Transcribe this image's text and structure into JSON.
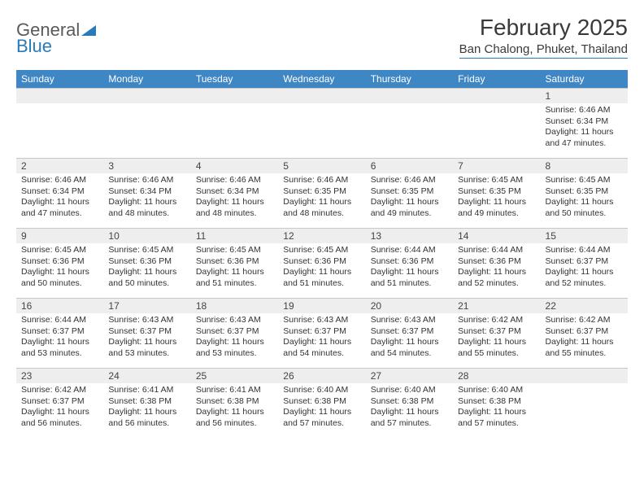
{
  "brand": {
    "word1": "General",
    "word2": "Blue"
  },
  "title": {
    "month": "February 2025",
    "location": "Ban Chalong, Phuket, Thailand"
  },
  "colors": {
    "header_bg": "#3f86c5",
    "header_text": "#ffffff",
    "daynum_bg": "#eeeeee",
    "border": "#c8c8c8",
    "accent": "#2a7ab9",
    "text": "#333333",
    "page_bg": "#ffffff"
  },
  "weekdays": [
    "Sunday",
    "Monday",
    "Tuesday",
    "Wednesday",
    "Thursday",
    "Friday",
    "Saturday"
  ],
  "weeks": [
    [
      {
        "n": "",
        "rise": "",
        "set": "",
        "day": ""
      },
      {
        "n": "",
        "rise": "",
        "set": "",
        "day": ""
      },
      {
        "n": "",
        "rise": "",
        "set": "",
        "day": ""
      },
      {
        "n": "",
        "rise": "",
        "set": "",
        "day": ""
      },
      {
        "n": "",
        "rise": "",
        "set": "",
        "day": ""
      },
      {
        "n": "",
        "rise": "",
        "set": "",
        "day": ""
      },
      {
        "n": "1",
        "rise": "Sunrise: 6:46 AM",
        "set": "Sunset: 6:34 PM",
        "day": "Daylight: 11 hours and 47 minutes."
      }
    ],
    [
      {
        "n": "2",
        "rise": "Sunrise: 6:46 AM",
        "set": "Sunset: 6:34 PM",
        "day": "Daylight: 11 hours and 47 minutes."
      },
      {
        "n": "3",
        "rise": "Sunrise: 6:46 AM",
        "set": "Sunset: 6:34 PM",
        "day": "Daylight: 11 hours and 48 minutes."
      },
      {
        "n": "4",
        "rise": "Sunrise: 6:46 AM",
        "set": "Sunset: 6:34 PM",
        "day": "Daylight: 11 hours and 48 minutes."
      },
      {
        "n": "5",
        "rise": "Sunrise: 6:46 AM",
        "set": "Sunset: 6:35 PM",
        "day": "Daylight: 11 hours and 48 minutes."
      },
      {
        "n": "6",
        "rise": "Sunrise: 6:46 AM",
        "set": "Sunset: 6:35 PM",
        "day": "Daylight: 11 hours and 49 minutes."
      },
      {
        "n": "7",
        "rise": "Sunrise: 6:45 AM",
        "set": "Sunset: 6:35 PM",
        "day": "Daylight: 11 hours and 49 minutes."
      },
      {
        "n": "8",
        "rise": "Sunrise: 6:45 AM",
        "set": "Sunset: 6:35 PM",
        "day": "Daylight: 11 hours and 50 minutes."
      }
    ],
    [
      {
        "n": "9",
        "rise": "Sunrise: 6:45 AM",
        "set": "Sunset: 6:36 PM",
        "day": "Daylight: 11 hours and 50 minutes."
      },
      {
        "n": "10",
        "rise": "Sunrise: 6:45 AM",
        "set": "Sunset: 6:36 PM",
        "day": "Daylight: 11 hours and 50 minutes."
      },
      {
        "n": "11",
        "rise": "Sunrise: 6:45 AM",
        "set": "Sunset: 6:36 PM",
        "day": "Daylight: 11 hours and 51 minutes."
      },
      {
        "n": "12",
        "rise": "Sunrise: 6:45 AM",
        "set": "Sunset: 6:36 PM",
        "day": "Daylight: 11 hours and 51 minutes."
      },
      {
        "n": "13",
        "rise": "Sunrise: 6:44 AM",
        "set": "Sunset: 6:36 PM",
        "day": "Daylight: 11 hours and 51 minutes."
      },
      {
        "n": "14",
        "rise": "Sunrise: 6:44 AM",
        "set": "Sunset: 6:36 PM",
        "day": "Daylight: 11 hours and 52 minutes."
      },
      {
        "n": "15",
        "rise": "Sunrise: 6:44 AM",
        "set": "Sunset: 6:37 PM",
        "day": "Daylight: 11 hours and 52 minutes."
      }
    ],
    [
      {
        "n": "16",
        "rise": "Sunrise: 6:44 AM",
        "set": "Sunset: 6:37 PM",
        "day": "Daylight: 11 hours and 53 minutes."
      },
      {
        "n": "17",
        "rise": "Sunrise: 6:43 AM",
        "set": "Sunset: 6:37 PM",
        "day": "Daylight: 11 hours and 53 minutes."
      },
      {
        "n": "18",
        "rise": "Sunrise: 6:43 AM",
        "set": "Sunset: 6:37 PM",
        "day": "Daylight: 11 hours and 53 minutes."
      },
      {
        "n": "19",
        "rise": "Sunrise: 6:43 AM",
        "set": "Sunset: 6:37 PM",
        "day": "Daylight: 11 hours and 54 minutes."
      },
      {
        "n": "20",
        "rise": "Sunrise: 6:43 AM",
        "set": "Sunset: 6:37 PM",
        "day": "Daylight: 11 hours and 54 minutes."
      },
      {
        "n": "21",
        "rise": "Sunrise: 6:42 AM",
        "set": "Sunset: 6:37 PM",
        "day": "Daylight: 11 hours and 55 minutes."
      },
      {
        "n": "22",
        "rise": "Sunrise: 6:42 AM",
        "set": "Sunset: 6:37 PM",
        "day": "Daylight: 11 hours and 55 minutes."
      }
    ],
    [
      {
        "n": "23",
        "rise": "Sunrise: 6:42 AM",
        "set": "Sunset: 6:37 PM",
        "day": "Daylight: 11 hours and 56 minutes."
      },
      {
        "n": "24",
        "rise": "Sunrise: 6:41 AM",
        "set": "Sunset: 6:38 PM",
        "day": "Daylight: 11 hours and 56 minutes."
      },
      {
        "n": "25",
        "rise": "Sunrise: 6:41 AM",
        "set": "Sunset: 6:38 PM",
        "day": "Daylight: 11 hours and 56 minutes."
      },
      {
        "n": "26",
        "rise": "Sunrise: 6:40 AM",
        "set": "Sunset: 6:38 PM",
        "day": "Daylight: 11 hours and 57 minutes."
      },
      {
        "n": "27",
        "rise": "Sunrise: 6:40 AM",
        "set": "Sunset: 6:38 PM",
        "day": "Daylight: 11 hours and 57 minutes."
      },
      {
        "n": "28",
        "rise": "Sunrise: 6:40 AM",
        "set": "Sunset: 6:38 PM",
        "day": "Daylight: 11 hours and 57 minutes."
      },
      {
        "n": "",
        "rise": "",
        "set": "",
        "day": ""
      }
    ]
  ]
}
